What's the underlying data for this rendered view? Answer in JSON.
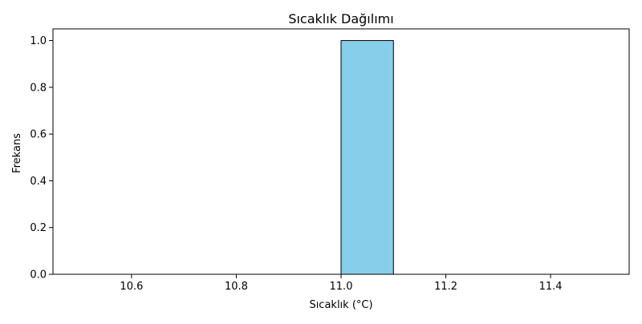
{
  "chart_data": {
    "type": "bar",
    "title": "Sıcaklık Dağılımı",
    "xlabel": "Sıcaklık (°C)",
    "ylabel": "Frekans",
    "xlim": [
      10.45,
      11.55
    ],
    "ylim": [
      0,
      1.05
    ],
    "xticks": [
      "10.6",
      "10.8",
      "11.0",
      "11.2",
      "11.4"
    ],
    "yticks": [
      "0.0",
      "0.2",
      "0.4",
      "0.6",
      "0.8",
      "1.0"
    ],
    "bins": [
      {
        "start": 10.5,
        "end": 10.6,
        "value": 0
      },
      {
        "start": 10.6,
        "end": 10.7,
        "value": 0
      },
      {
        "start": 10.7,
        "end": 10.8,
        "value": 0
      },
      {
        "start": 10.8,
        "end": 10.9,
        "value": 0
      },
      {
        "start": 10.9,
        "end": 11.0,
        "value": 0
      },
      {
        "start": 11.0,
        "end": 11.1,
        "value": 1
      },
      {
        "start": 11.1,
        "end": 11.2,
        "value": 0
      },
      {
        "start": 11.2,
        "end": 11.3,
        "value": 0
      },
      {
        "start": 11.3,
        "end": 11.4,
        "value": 0
      },
      {
        "start": 11.4,
        "end": 11.5,
        "value": 0
      }
    ],
    "grid": false,
    "legend": false,
    "bar_color": "#87CEEB",
    "edge_color": "#000000"
  }
}
